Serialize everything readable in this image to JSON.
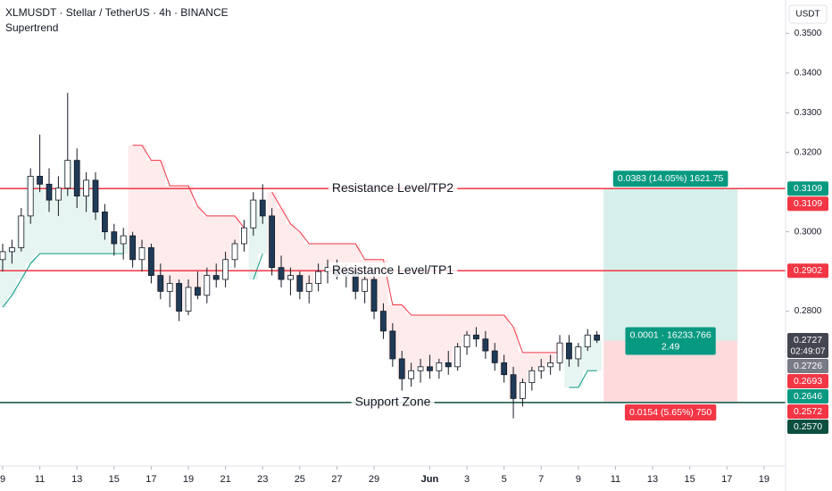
{
  "chart_data": {
    "type": "candlestick",
    "title": "XLMUSDT · Stellar / TetherUS · 4h · BINANCE",
    "indicator_name": "Supertrend",
    "currency": "USDT",
    "xlim": [
      -0.144,
      42.16
    ],
    "ylim": [
      0.241,
      0.3584
    ],
    "xticks": [
      {
        "value": 0,
        "label": "9"
      },
      {
        "value": 2,
        "label": "11"
      },
      {
        "value": 4,
        "label": "13"
      },
      {
        "value": 6,
        "label": "15"
      },
      {
        "value": 8,
        "label": "17"
      },
      {
        "value": 10,
        "label": "19"
      },
      {
        "value": 12,
        "label": "21"
      },
      {
        "value": 14,
        "label": "23"
      },
      {
        "value": 16,
        "label": "25"
      },
      {
        "value": 18,
        "label": "27"
      },
      {
        "value": 20,
        "label": "29"
      },
      {
        "value": 23,
        "label": "Jun"
      },
      {
        "value": 25,
        "label": "3"
      },
      {
        "value": 27,
        "label": "5"
      },
      {
        "value": 29,
        "label": "7"
      },
      {
        "value": 31,
        "label": "9"
      },
      {
        "value": 33,
        "label": "11"
      },
      {
        "value": 35,
        "label": "13"
      },
      {
        "value": 37,
        "label": "15"
      },
      {
        "value": 39,
        "label": "17"
      },
      {
        "value": 41,
        "label": "19"
      }
    ],
    "yticks": [
      {
        "value": 0.35,
        "label": "0.3500"
      },
      {
        "value": 0.34,
        "label": "0.3400"
      },
      {
        "value": 0.33,
        "label": "0.3300"
      },
      {
        "value": 0.32,
        "label": "0.3200"
      },
      {
        "value": 0.3,
        "label": "0.3000"
      },
      {
        "value": 0.28,
        "label": "0.2800"
      }
    ],
    "up_color": "#ffffff",
    "down_color": "#1f3b57",
    "wick_color": "#131722",
    "x": [
      0,
      0.5,
      1,
      1.5,
      2,
      2.5,
      3,
      3.5,
      4,
      4.5,
      5,
      5.5,
      6,
      6.5,
      7,
      7.5,
      8,
      8.5,
      9,
      9.5,
      10,
      10.5,
      11,
      11.5,
      12,
      12.5,
      13,
      13.5,
      14,
      14.5,
      15,
      15.5,
      16,
      16.5,
      17,
      17.5,
      18,
      18.5,
      19,
      19.5,
      20,
      20.5,
      21,
      21.5,
      22,
      22.5,
      23,
      23.5,
      24,
      24.5,
      25,
      25.5,
      26,
      26.5,
      27,
      27.5,
      28,
      28.5,
      29,
      29.5,
      30,
      30.5,
      31,
      31.5,
      32
    ],
    "open": [
      0.293,
      0.295,
      0.296,
      0.304,
      0.314,
      0.312,
      0.308,
      0.311,
      0.318,
      0.309,
      0.313,
      0.305,
      0.3,
      0.297,
      0.299,
      0.293,
      0.296,
      0.289,
      0.285,
      0.287,
      0.28,
      0.286,
      0.284,
      0.289,
      0.288,
      0.293,
      0.297,
      0.301,
      0.308,
      0.304,
      0.291,
      0.288,
      0.289,
      0.285,
      0.287,
      0.29,
      0.291,
      0.289,
      0.29,
      0.285,
      0.288,
      0.28,
      0.275,
      0.268,
      0.263,
      0.265,
      0.266,
      0.265,
      0.267,
      0.266,
      0.271,
      0.274,
      0.273,
      0.27,
      0.267,
      0.264,
      0.258,
      0.262,
      0.265,
      0.266,
      0.267,
      0.272,
      0.268,
      0.271,
      0.274
    ],
    "high": [
      0.297,
      0.298,
      0.306,
      0.316,
      0.3245,
      0.316,
      0.314,
      0.335,
      0.321,
      0.315,
      0.315,
      0.307,
      0.302,
      0.301,
      0.3,
      0.298,
      0.297,
      0.292,
      0.289,
      0.288,
      0.288,
      0.29,
      0.291,
      0.292,
      0.295,
      0.298,
      0.303,
      0.31,
      0.312,
      0.306,
      0.294,
      0.291,
      0.29,
      0.289,
      0.292,
      0.293,
      0.293,
      0.292,
      0.291,
      0.29,
      0.29,
      0.282,
      0.277,
      0.27,
      0.267,
      0.268,
      0.269,
      0.268,
      0.27,
      0.272,
      0.275,
      0.276,
      0.275,
      0.272,
      0.269,
      0.266,
      0.263,
      0.266,
      0.268,
      0.269,
      0.274,
      0.274,
      0.272,
      0.2755,
      0.275
    ],
    "low": [
      0.29,
      0.292,
      0.295,
      0.302,
      0.31,
      0.305,
      0.304,
      0.309,
      0.306,
      0.305,
      0.303,
      0.298,
      0.294,
      0.293,
      0.291,
      0.29,
      0.287,
      0.283,
      0.281,
      0.2775,
      0.279,
      0.283,
      0.282,
      0.286,
      0.286,
      0.291,
      0.295,
      0.299,
      0.302,
      0.289,
      0.286,
      0.284,
      0.283,
      0.282,
      0.285,
      0.287,
      0.288,
      0.286,
      0.283,
      0.282,
      0.278,
      0.273,
      0.266,
      0.26,
      0.261,
      0.262,
      0.263,
      0.263,
      0.264,
      0.265,
      0.269,
      0.271,
      0.268,
      0.265,
      0.262,
      0.253,
      0.256,
      0.26,
      0.263,
      0.264,
      0.265,
      0.266,
      0.266,
      0.27,
      0.272
    ],
    "close": [
      0.295,
      0.296,
      0.304,
      0.314,
      0.312,
      0.308,
      0.311,
      0.318,
      0.309,
      0.313,
      0.305,
      0.3,
      0.297,
      0.299,
      0.293,
      0.296,
      0.289,
      0.285,
      0.287,
      0.28,
      0.286,
      0.284,
      0.289,
      0.288,
      0.293,
      0.297,
      0.301,
      0.308,
      0.304,
      0.291,
      0.288,
      0.289,
      0.285,
      0.287,
      0.29,
      0.291,
      0.289,
      0.29,
      0.285,
      0.288,
      0.28,
      0.275,
      0.268,
      0.263,
      0.265,
      0.266,
      0.265,
      0.267,
      0.266,
      0.271,
      0.274,
      0.273,
      0.27,
      0.267,
      0.264,
      0.258,
      0.262,
      0.265,
      0.266,
      0.267,
      0.272,
      0.268,
      0.271,
      0.274,
      0.2727
    ],
    "supertrend": {
      "up_color": "#089981",
      "down_color": "#f23645",
      "up": [
        0.281,
        0.284,
        0.288,
        0.292,
        0.2945,
        0.2945,
        0.2945,
        0.2945,
        0.2945,
        0.2945,
        0.2945,
        0.2945,
        0.2945,
        0.2945,
        null,
        null,
        null,
        null,
        null,
        null,
        null,
        null,
        null,
        null,
        null,
        null,
        null,
        0.288,
        0.2945,
        null,
        null,
        null,
        null,
        null,
        null,
        null,
        null,
        null,
        null,
        null,
        null,
        null,
        null,
        null,
        null,
        null,
        null,
        null,
        null,
        null,
        null,
        null,
        null,
        null,
        null,
        null,
        null,
        null,
        null,
        null,
        null,
        0.2608,
        0.2608,
        0.265,
        0.265
      ],
      "down": [
        null,
        null,
        null,
        null,
        null,
        null,
        null,
        null,
        null,
        null,
        null,
        null,
        null,
        null,
        0.3218,
        0.3218,
        0.318,
        0.318,
        0.3116,
        0.3116,
        0.3116,
        0.3064,
        0.304,
        0.304,
        0.304,
        0.304,
        0.301,
        null,
        null,
        0.31,
        0.306,
        0.302,
        0.3,
        0.297,
        0.297,
        0.297,
        0.297,
        0.297,
        0.297,
        0.293,
        0.293,
        0.293,
        0.2816,
        0.2816,
        0.279,
        0.279,
        0.279,
        0.279,
        0.279,
        0.279,
        0.279,
        0.279,
        0.279,
        0.279,
        0.279,
        0.276,
        0.2696,
        0.2696,
        0.2696,
        0.2696,
        0.2696,
        null,
        null,
        null,
        null
      ]
    },
    "levels": [
      {
        "label": "Resistance Level/TP2",
        "value": 0.3109,
        "color": "#f23645"
      },
      {
        "label": "Resistance Level/TP1",
        "value": 0.2902,
        "color": "#f23645"
      },
      {
        "label": "Support Zone",
        "value": 0.257,
        "color": "#0b4f3f"
      }
    ],
    "position": {
      "x_start": 32.36,
      "x_end": 39.57,
      "entry": 0.2726,
      "target": 0.3109,
      "stop": 0.2572,
      "target_label": "0.0383 (14.05%) 1621.75",
      "entry_label": [
        "0.0001 · 16233.766",
        "2.49"
      ],
      "stop_label": "0.0154 (5.65%) 750"
    },
    "badges": [
      {
        "value": 0.3109,
        "label": "0.3109",
        "color": "#089981"
      },
      {
        "value": 0.3109,
        "label": "0.3109",
        "color": "#f23645"
      },
      {
        "value": 0.2902,
        "label": "0.2902",
        "color": "#f23645"
      },
      {
        "value": 0.2727,
        "label": "0.2727",
        "sublabel": "02:49:07",
        "color": "#434651"
      },
      {
        "value": 0.2726,
        "label": "0.2726",
        "color": "#787b86"
      },
      {
        "value": 0.2693,
        "label": "0.2693",
        "color": "#f23645"
      },
      {
        "value": 0.2646,
        "label": "0.2646",
        "color": "#089981"
      },
      {
        "value": 0.2572,
        "label": "0.2572",
        "color": "#f23645"
      },
      {
        "value": 0.257,
        "label": "0.2570",
        "color": "#0b4f3f"
      }
    ]
  }
}
